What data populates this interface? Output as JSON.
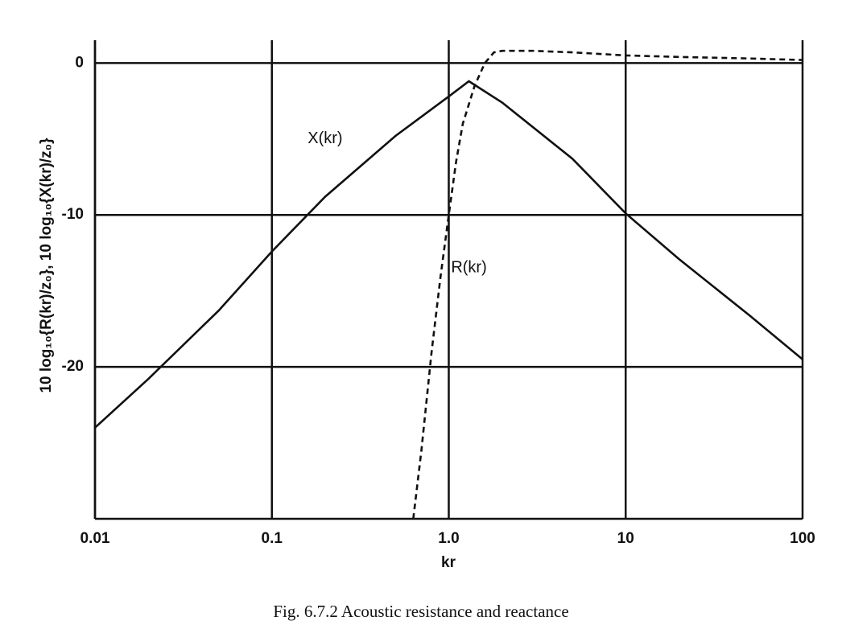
{
  "chart_data": {
    "type": "line",
    "xlabel": "kr",
    "ylabel": "10 log₁₀{R(kr)/z₀},  10 log₁₀{X(kr)/z₀}",
    "caption": "Fig. 6.7.2  Acoustic resistance and reactance",
    "annotations": [
      {
        "text": "X(kr)",
        "x": 0.2,
        "y": -5
      },
      {
        "text": "R(kr)",
        "x": 1.3,
        "y": -13.5
      }
    ],
    "xlog": true,
    "xlim": [
      0.01,
      100
    ],
    "xticks": [
      {
        "value": 0.01,
        "label": "0.01"
      },
      0.1,
      {
        "value": 1,
        "label": "1.0"
      },
      10,
      100
    ],
    "ylim": [
      -30,
      1.5
    ],
    "yticks": [
      -20,
      -10,
      0
    ],
    "grid": true,
    "series": [
      {
        "name": "X(kr)",
        "color": "#111111",
        "dash": false,
        "x": [
          0.01,
          0.02,
          0.05,
          0.1,
          0.2,
          0.5,
          1,
          1.3,
          2,
          5,
          10,
          20,
          50,
          100
        ],
        "values": [
          -24,
          -20.8,
          -16.3,
          -12.4,
          -8.8,
          -4.8,
          -2.2,
          -1.2,
          -2.6,
          -6.3,
          -9.9,
          -12.9,
          -16.6,
          -19.5
        ]
      },
      {
        "name": "R(kr)",
        "color": "#111111",
        "dash": true,
        "x": [
          0.63,
          0.7,
          0.8,
          0.9,
          1,
          1.1,
          1.2,
          1.4,
          1.6,
          1.8,
          2,
          3,
          5,
          10,
          20,
          50,
          100
        ],
        "values": [
          -30,
          -25.5,
          -19,
          -14,
          -10,
          -6.5,
          -4,
          -1.5,
          0,
          0.7,
          0.8,
          0.8,
          0.7,
          0.5,
          0.4,
          0.3,
          0.2
        ]
      }
    ]
  }
}
